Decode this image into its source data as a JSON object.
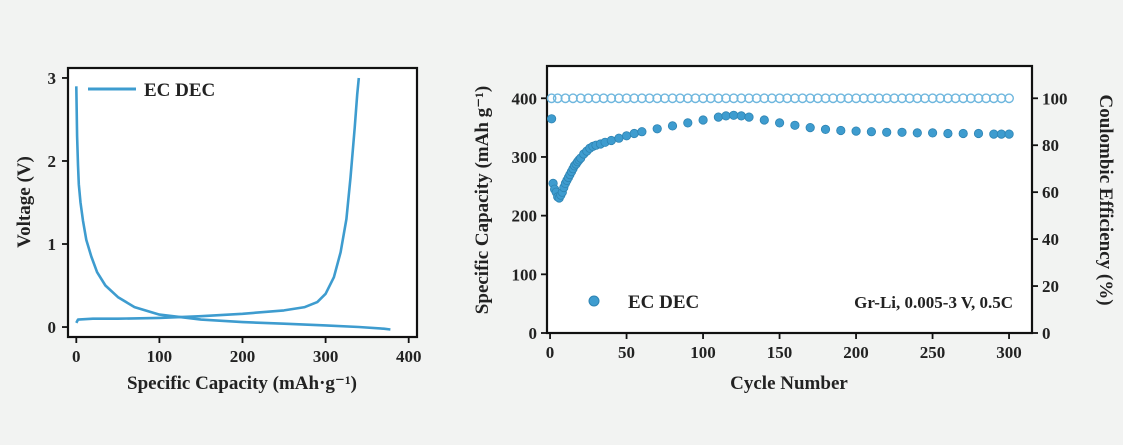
{
  "colors": {
    "series": "#3e9ccf",
    "series_light": "#6fb7de",
    "axis": "#111111",
    "background": "#f2f3f2"
  },
  "chart_data": [
    {
      "type": "line",
      "xlabel": "Specific Capacity (mAh·g⁻¹)",
      "ylabel": "Voltage (V)",
      "xlim": [
        -10,
        410
      ],
      "ylim": [
        -0.12,
        3.12
      ],
      "xticks": [
        0,
        100,
        200,
        300,
        400
      ],
      "yticks": [
        0,
        1,
        2,
        3
      ],
      "legend": {
        "position": "top-left",
        "entries": [
          "EC DEC"
        ]
      },
      "series": [
        {
          "name": "EC DEC",
          "segment": "discharge",
          "x": [
            0,
            0.5,
            1,
            2,
            3,
            5,
            8,
            12,
            18,
            25,
            35,
            50,
            70,
            100,
            150,
            200,
            250,
            300,
            340,
            370,
            378
          ],
          "y": [
            2.9,
            2.6,
            2.3,
            1.95,
            1.72,
            1.5,
            1.28,
            1.05,
            0.85,
            0.66,
            0.5,
            0.36,
            0.24,
            0.15,
            0.09,
            0.06,
            0.04,
            0.02,
            0.0,
            -0.02,
            -0.03
          ]
        },
        {
          "name": "EC DEC",
          "segment": "charge",
          "x": [
            0,
            2,
            20,
            50,
            100,
            150,
            200,
            250,
            275,
            290,
            300,
            310,
            318,
            325,
            330,
            335,
            338,
            340
          ],
          "y": [
            0.05,
            0.09,
            0.1,
            0.1,
            0.11,
            0.13,
            0.16,
            0.2,
            0.24,
            0.3,
            0.4,
            0.6,
            0.9,
            1.3,
            1.8,
            2.4,
            2.8,
            3.0
          ]
        }
      ]
    },
    {
      "type": "scatter",
      "xlabel": "Cycle Number",
      "ylabel": "Specific Capacity (mAh g⁻¹)",
      "y2label": "Coulombic Efficiency (%)",
      "xlim": [
        -2,
        315
      ],
      "ylim": [
        0,
        455
      ],
      "y2lim": [
        0,
        113.75
      ],
      "xticks": [
        0,
        50,
        100,
        150,
        200,
        250,
        300
      ],
      "yticks": [
        0,
        100,
        200,
        300,
        400
      ],
      "y2ticks": [
        0,
        20,
        40,
        60,
        80,
        100
      ],
      "legend": {
        "position": "bottom-left",
        "entries": [
          "EC DEC"
        ]
      },
      "annotation": "Gr-Li, 0.005-3 V, 0.5C",
      "series": [
        {
          "name": "EC DEC",
          "axis": "left",
          "marker": "filled",
          "x": [
            1,
            2,
            3,
            4,
            5,
            6,
            7,
            8,
            9,
            10,
            11,
            12,
            13,
            14,
            15,
            16,
            17,
            18,
            19,
            20,
            22,
            24,
            26,
            28,
            30,
            33,
            36,
            40,
            45,
            50,
            55,
            60,
            70,
            80,
            90,
            100,
            110,
            115,
            120,
            125,
            130,
            140,
            150,
            160,
            170,
            180,
            190,
            200,
            210,
            220,
            230,
            240,
            250,
            260,
            270,
            280,
            290,
            295,
            300
          ],
          "y": [
            365,
            255,
            245,
            240,
            232,
            230,
            235,
            240,
            248,
            255,
            260,
            265,
            270,
            275,
            280,
            285,
            288,
            292,
            295,
            298,
            305,
            310,
            315,
            318,
            320,
            322,
            325,
            328,
            332,
            336,
            340,
            343,
            348,
            353,
            358,
            363,
            368,
            370,
            371,
            370,
            368,
            363,
            358,
            354,
            350,
            347,
            345,
            344,
            343,
            342,
            342,
            341,
            341,
            340,
            340,
            340,
            339,
            339,
            339
          ]
        },
        {
          "name": "Coulombic Efficiency",
          "axis": "right",
          "marker": "open",
          "x": [
            1,
            5,
            10,
            15,
            20,
            25,
            30,
            35,
            40,
            45,
            50,
            55,
            60,
            65,
            70,
            75,
            80,
            85,
            90,
            95,
            100,
            105,
            110,
            115,
            120,
            125,
            130,
            135,
            140,
            145,
            150,
            155,
            160,
            165,
            170,
            175,
            180,
            185,
            190,
            195,
            200,
            205,
            210,
            215,
            220,
            225,
            230,
            235,
            240,
            245,
            250,
            255,
            260,
            265,
            270,
            275,
            280,
            285,
            290,
            295,
            300
          ],
          "y": [
            100,
            100,
            100,
            100,
            100,
            100,
            100,
            100,
            100,
            100,
            100,
            100,
            100,
            100,
            100,
            100,
            100,
            100,
            100,
            100,
            100,
            100,
            100,
            100,
            100,
            100,
            100,
            100,
            100,
            100,
            100,
            100,
            100,
            100,
            100,
            100,
            100,
            100,
            100,
            100,
            100,
            100,
            100,
            100,
            100,
            100,
            100,
            100,
            100,
            100,
            100,
            100,
            100,
            100,
            100,
            100,
            100,
            100,
            100,
            100,
            100
          ]
        }
      ]
    }
  ]
}
